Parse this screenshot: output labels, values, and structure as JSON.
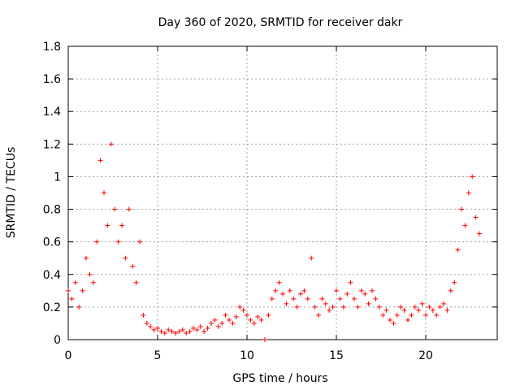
{
  "chart_data": {
    "type": "scatter",
    "title": "Day 360 of 2020, SRMTID for receiver dakr",
    "xlabel": "GPS time / hours",
    "ylabel": "SRMTID / TECUs",
    "xlim": [
      0,
      24
    ],
    "ylim": [
      0,
      1.8
    ],
    "xticks": [
      0,
      5,
      10,
      15,
      20
    ],
    "xtick_labels": [
      "0",
      "5",
      "10",
      "15",
      "20"
    ],
    "yticks": [
      0,
      0.2,
      0.4,
      0.6,
      0.8,
      1,
      1.2,
      1.4,
      1.6,
      1.8
    ],
    "ytick_labels": [
      "0",
      "0.2",
      "0.4",
      "0.6",
      "0.8",
      "1",
      "1.2",
      "1.4",
      "1.6",
      "1.8"
    ],
    "grid": true,
    "marker": "plus",
    "color": "#ff0000",
    "series": [
      {
        "name": "SRMTID",
        "x": [
          0.0,
          0.2,
          0.4,
          0.6,
          0.8,
          1.0,
          1.2,
          1.4,
          1.6,
          1.8,
          2.0,
          2.2,
          2.4,
          2.6,
          2.8,
          3.0,
          3.2,
          3.4,
          3.6,
          3.8,
          4.0,
          4.2,
          4.4,
          4.6,
          4.8,
          5.0,
          5.2,
          5.4,
          5.6,
          5.8,
          6.0,
          6.2,
          6.4,
          6.6,
          6.8,
          7.0,
          7.2,
          7.4,
          7.6,
          7.8,
          8.0,
          8.2,
          8.4,
          8.6,
          8.8,
          9.0,
          9.2,
          9.4,
          9.6,
          9.8,
          10.0,
          10.2,
          10.4,
          10.6,
          10.8,
          11.0,
          11.2,
          11.4,
          11.6,
          11.8,
          12.0,
          12.2,
          12.4,
          12.6,
          12.8,
          13.0,
          13.2,
          13.4,
          13.6,
          13.8,
          14.0,
          14.2,
          14.4,
          14.6,
          14.8,
          15.0,
          15.2,
          15.4,
          15.6,
          15.8,
          16.0,
          16.2,
          16.4,
          16.6,
          16.8,
          17.0,
          17.2,
          17.4,
          17.6,
          17.8,
          18.0,
          18.2,
          18.4,
          18.6,
          18.8,
          19.0,
          19.2,
          19.4,
          19.6,
          19.8,
          20.0,
          20.2,
          20.4,
          20.6,
          20.8,
          21.0,
          21.2,
          21.4,
          21.6,
          21.8,
          22.0,
          22.2,
          22.4,
          22.6,
          22.8,
          23.0
        ],
        "y": [
          0.3,
          0.25,
          0.35,
          0.2,
          0.3,
          0.5,
          0.4,
          0.35,
          0.6,
          1.1,
          0.9,
          0.7,
          1.2,
          0.8,
          0.6,
          0.7,
          0.5,
          0.8,
          0.45,
          0.35,
          0.6,
          0.15,
          0.1,
          0.08,
          0.06,
          0.07,
          0.05,
          0.04,
          0.06,
          0.05,
          0.04,
          0.05,
          0.06,
          0.04,
          0.05,
          0.07,
          0.06,
          0.08,
          0.05,
          0.07,
          0.1,
          0.12,
          0.08,
          0.1,
          0.15,
          0.12,
          0.1,
          0.14,
          0.2,
          0.18,
          0.15,
          0.12,
          0.1,
          0.14,
          0.12,
          0.0,
          0.15,
          0.25,
          0.3,
          0.35,
          0.28,
          0.22,
          0.3,
          0.25,
          0.2,
          0.28,
          0.3,
          0.25,
          0.5,
          0.2,
          0.15,
          0.25,
          0.22,
          0.18,
          0.2,
          0.3,
          0.25,
          0.2,
          0.28,
          0.35,
          0.25,
          0.2,
          0.3,
          0.28,
          0.22,
          0.3,
          0.25,
          0.2,
          0.15,
          0.18,
          0.12,
          0.1,
          0.15,
          0.2,
          0.18,
          0.12,
          0.15,
          0.2,
          0.18,
          0.22,
          0.15,
          0.2,
          0.18,
          0.15,
          0.2,
          0.22,
          0.18,
          0.3,
          0.35,
          0.55,
          0.8,
          0.7,
          0.9,
          1.0,
          0.75,
          0.65
        ]
      }
    ]
  }
}
